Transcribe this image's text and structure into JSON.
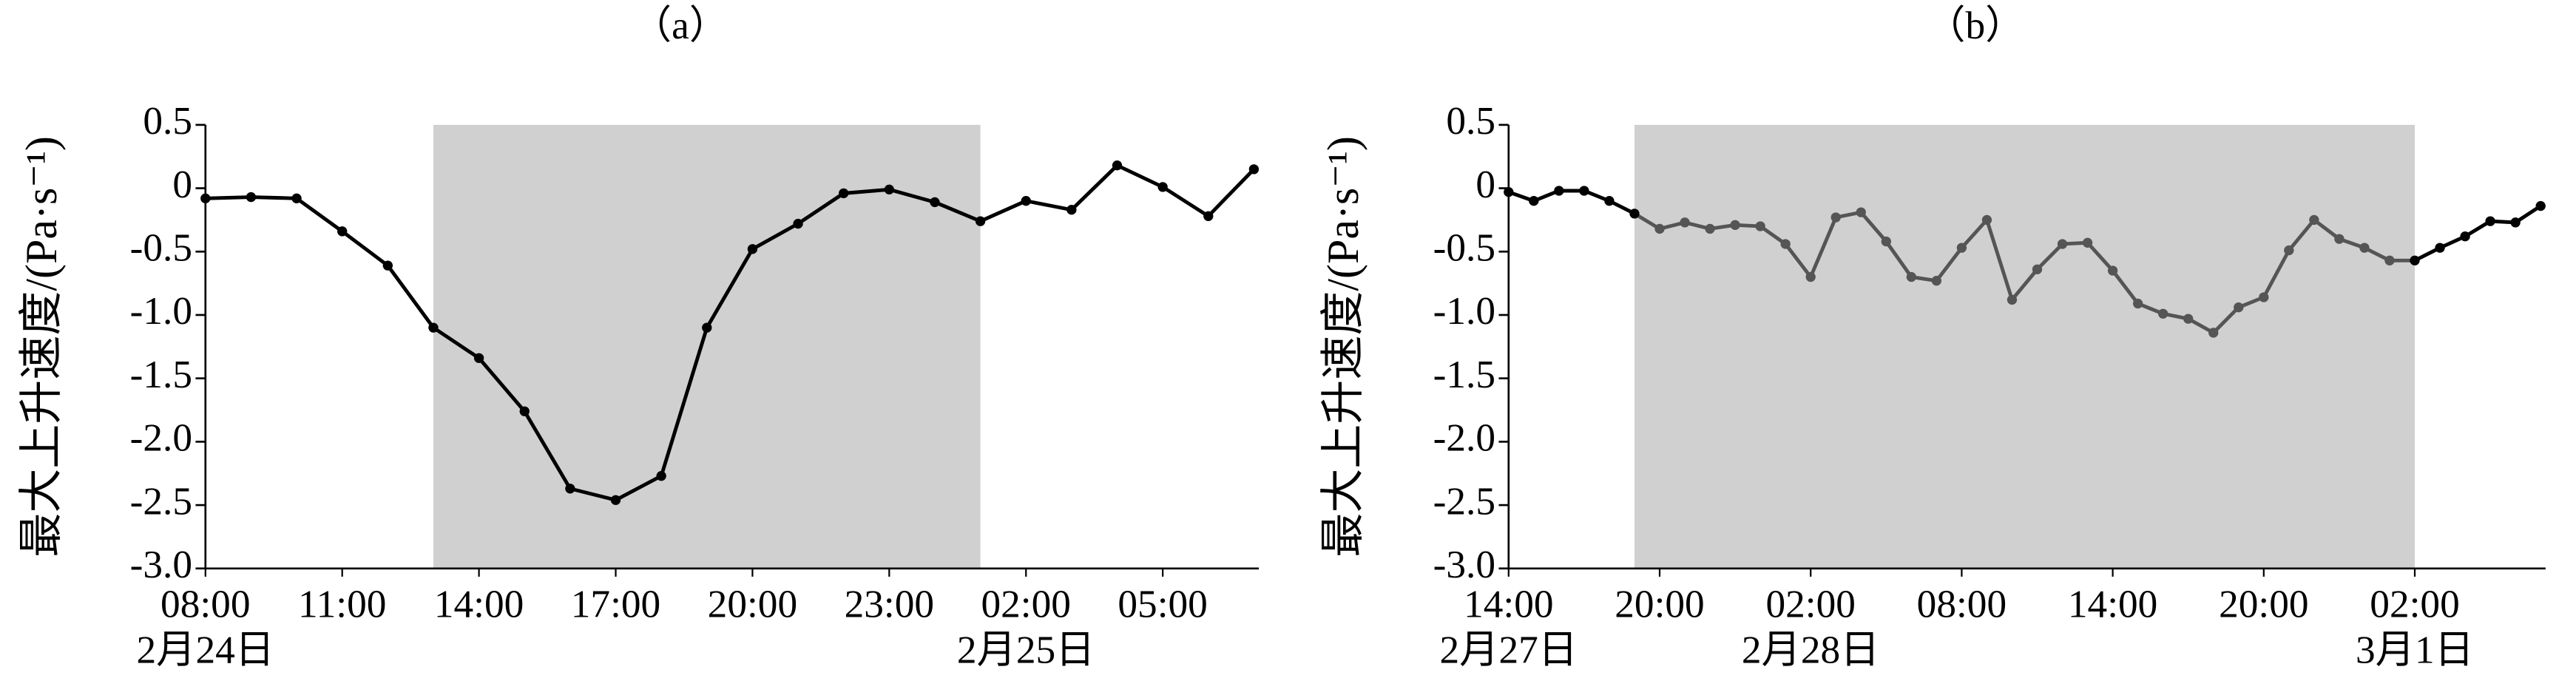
{
  "chart_data": [
    {
      "type": "line",
      "title": "（a）",
      "y_label": "最大上升速度/(Pa·s⁻¹)",
      "categories": [
        "08:00",
        null,
        null,
        "11:00",
        null,
        null,
        "14:00",
        null,
        null,
        "17:00",
        null,
        null,
        "20:00",
        null,
        null,
        "23:00",
        null,
        null,
        "02:00",
        null,
        null,
        "05:00",
        null,
        null
      ],
      "dates": [
        "2月24日",
        null,
        null,
        null,
        null,
        null,
        null,
        null,
        null,
        null,
        null,
        null,
        null,
        null,
        null,
        null,
        null,
        null,
        "2月25日",
        null,
        null,
        null,
        null,
        null
      ],
      "values": [
        -0.08,
        -0.07,
        -0.08,
        -0.34,
        -0.61,
        -1.1,
        -1.34,
        -1.76,
        -2.37,
        -2.46,
        -2.27,
        -1.1,
        -0.48,
        -0.28,
        -0.04,
        -0.01,
        -0.11,
        -0.26,
        -0.1,
        -0.17,
        0.18,
        0.01,
        -0.22,
        0.15
      ],
      "color": "#000000",
      "inner_color": "#000000",
      "shade_color": "#d0d0d0",
      "shade": [
        5,
        17
      ],
      "ylim": [
        -3.0,
        0.5
      ],
      "yticks": [
        0.5,
        0,
        -0.5,
        {
          "value": -1,
          "label": "-1.0"
        },
        -1.5,
        {
          "value": -2,
          "label": "-2.0"
        },
        -2.5,
        {
          "value": -3,
          "label": "-3.0"
        }
      ]
    },
    {
      "type": "line",
      "title": "（b）",
      "y_label": "最大上升速度/(Pa·s⁻¹)",
      "categories": [
        "14:00",
        null,
        null,
        null,
        null,
        null,
        "20:00",
        null,
        null,
        null,
        null,
        null,
        "02:00",
        null,
        null,
        null,
        null,
        null,
        "08:00",
        null,
        null,
        null,
        null,
        null,
        "14:00",
        null,
        null,
        null,
        null,
        null,
        "20:00",
        null,
        null,
        null,
        null,
        null,
        "02:00",
        null,
        null,
        null,
        null,
        null
      ],
      "dates": [
        "2月27日",
        null,
        null,
        null,
        null,
        null,
        null,
        null,
        null,
        null,
        null,
        null,
        "2月28日",
        null,
        null,
        null,
        null,
        null,
        null,
        null,
        null,
        null,
        null,
        null,
        null,
        null,
        null,
        null,
        null,
        null,
        null,
        null,
        null,
        null,
        null,
        null,
        "3月1日",
        null,
        null,
        null,
        null,
        null
      ],
      "values": [
        -0.03,
        -0.1,
        -0.02,
        -0.02,
        -0.1,
        -0.2,
        -0.32,
        -0.27,
        -0.32,
        -0.29,
        -0.3,
        -0.44,
        -0.7,
        -0.23,
        -0.19,
        -0.42,
        -0.7,
        -0.73,
        -0.47,
        -0.25,
        -0.88,
        -0.64,
        -0.44,
        -0.43,
        -0.65,
        -0.91,
        -0.99,
        -1.03,
        -1.14,
        -0.94,
        -0.86,
        -0.49,
        -0.25,
        -0.4,
        -0.47,
        -0.57,
        -0.57,
        -0.47,
        -0.38,
        -0.26,
        -0.27,
        -0.14
      ],
      "color": "#000000",
      "inner_color": "#555555",
      "shade_color": "#d0d0d0",
      "shade": [
        5,
        36
      ],
      "ylim": [
        -3.0,
        0.5
      ],
      "yticks": [
        0.5,
        0,
        -0.5,
        {
          "value": -1,
          "label": "-1.0"
        },
        -1.5,
        {
          "value": -2,
          "label": "-2.0"
        },
        -2.5,
        {
          "value": -3,
          "label": "-3.0"
        }
      ]
    }
  ]
}
